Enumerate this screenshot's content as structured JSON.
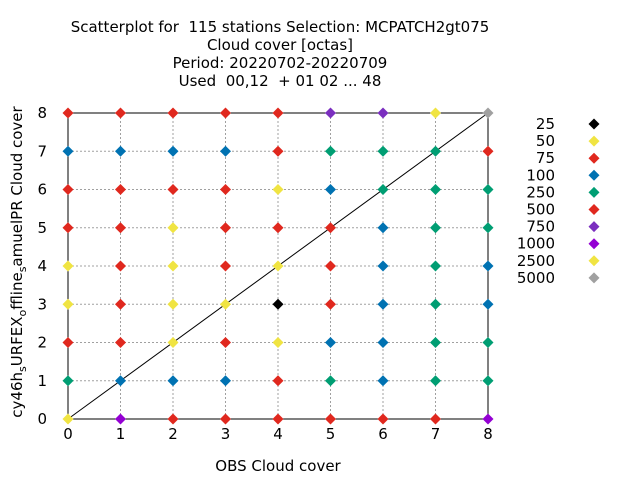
{
  "chart_data": {
    "type": "scatter",
    "title_lines": [
      "Scatterplot for  115 stations Selection: MCPATCH2gt075",
      "Cloud cover [octas]",
      "Period: 20220702-20220709",
      "Used  00,12  + 01 02 ... 48"
    ],
    "xlabel": "OBS Cloud cover",
    "ylabel": "cy46h_sURFEX_offline_samuelPR Cloud cover",
    "xlim": [
      0,
      8
    ],
    "ylim": [
      0,
      8
    ],
    "xticks": [
      "0",
      "1",
      "2",
      "3",
      "4",
      "5",
      "6",
      "7",
      "8"
    ],
    "yticks": [
      "0",
      "1",
      "2",
      "3",
      "4",
      "5",
      "6",
      "7",
      "8"
    ],
    "grid": true,
    "diagonal": true,
    "legend_position": "right",
    "legend": [
      {
        "label": "25",
        "color": "#000000"
      },
      {
        "label": "50",
        "color": "#f0e442"
      },
      {
        "label": "75",
        "color": "#e0281e"
      },
      {
        "label": "100",
        "color": "#0072b2"
      },
      {
        "label": "250",
        "color": "#009e73"
      },
      {
        "label": "500",
        "color": "#e0281e"
      },
      {
        "label": "750",
        "color": "#7b2fbf"
      },
      {
        "label": "1000",
        "color": "#9400d3"
      },
      {
        "label": "2500",
        "color": "#f0e442"
      },
      {
        "label": "5000",
        "color": "#a0a0a0"
      }
    ],
    "points": [
      {
        "x": 0,
        "y": 0,
        "c": "#f0e442"
      },
      {
        "x": 1,
        "y": 0,
        "c": "#9400d3"
      },
      {
        "x": 2,
        "y": 0,
        "c": "#e0281e"
      },
      {
        "x": 3,
        "y": 0,
        "c": "#e0281e"
      },
      {
        "x": 4,
        "y": 0,
        "c": "#e0281e"
      },
      {
        "x": 5,
        "y": 0,
        "c": "#e0281e"
      },
      {
        "x": 6,
        "y": 0,
        "c": "#e0281e"
      },
      {
        "x": 7,
        "y": 0,
        "c": "#e0281e"
      },
      {
        "x": 8,
        "y": 0,
        "c": "#9400d3"
      },
      {
        "x": 0,
        "y": 1,
        "c": "#009e73"
      },
      {
        "x": 1,
        "y": 1,
        "c": "#0072b2"
      },
      {
        "x": 2,
        "y": 1,
        "c": "#0072b2"
      },
      {
        "x": 3,
        "y": 1,
        "c": "#0072b2"
      },
      {
        "x": 4,
        "y": 1,
        "c": "#e0281e"
      },
      {
        "x": 5,
        "y": 1,
        "c": "#009e73"
      },
      {
        "x": 6,
        "y": 1,
        "c": "#0072b2"
      },
      {
        "x": 7,
        "y": 1,
        "c": "#009e73"
      },
      {
        "x": 8,
        "y": 1,
        "c": "#009e73"
      },
      {
        "x": 0,
        "y": 2,
        "c": "#e0281e"
      },
      {
        "x": 1,
        "y": 2,
        "c": "#e0281e"
      },
      {
        "x": 2,
        "y": 2,
        "c": "#f0e442"
      },
      {
        "x": 3,
        "y": 2,
        "c": "#e0281e"
      },
      {
        "x": 4,
        "y": 2,
        "c": "#f0e442"
      },
      {
        "x": 5,
        "y": 2,
        "c": "#0072b2"
      },
      {
        "x": 6,
        "y": 2,
        "c": "#0072b2"
      },
      {
        "x": 7,
        "y": 2,
        "c": "#009e73"
      },
      {
        "x": 8,
        "y": 2,
        "c": "#009e73"
      },
      {
        "x": 0,
        "y": 3,
        "c": "#f0e442"
      },
      {
        "x": 1,
        "y": 3,
        "c": "#e0281e"
      },
      {
        "x": 2,
        "y": 3,
        "c": "#f0e442"
      },
      {
        "x": 3,
        "y": 3,
        "c": "#f0e442"
      },
      {
        "x": 4,
        "y": 3,
        "c": "#000000"
      },
      {
        "x": 5,
        "y": 3,
        "c": "#e0281e"
      },
      {
        "x": 6,
        "y": 3,
        "c": "#0072b2"
      },
      {
        "x": 7,
        "y": 3,
        "c": "#009e73"
      },
      {
        "x": 8,
        "y": 3,
        "c": "#0072b2"
      },
      {
        "x": 0,
        "y": 4,
        "c": "#f0e442"
      },
      {
        "x": 1,
        "y": 4,
        "c": "#e0281e"
      },
      {
        "x": 2,
        "y": 4,
        "c": "#f0e442"
      },
      {
        "x": 3,
        "y": 4,
        "c": "#e0281e"
      },
      {
        "x": 4,
        "y": 4,
        "c": "#f0e442"
      },
      {
        "x": 5,
        "y": 4,
        "c": "#e0281e"
      },
      {
        "x": 6,
        "y": 4,
        "c": "#0072b2"
      },
      {
        "x": 7,
        "y": 4,
        "c": "#009e73"
      },
      {
        "x": 8,
        "y": 4,
        "c": "#0072b2"
      },
      {
        "x": 0,
        "y": 5,
        "c": "#e0281e"
      },
      {
        "x": 1,
        "y": 5,
        "c": "#e0281e"
      },
      {
        "x": 2,
        "y": 5,
        "c": "#f0e442"
      },
      {
        "x": 3,
        "y": 5,
        "c": "#e0281e"
      },
      {
        "x": 4,
        "y": 5,
        "c": "#e0281e"
      },
      {
        "x": 5,
        "y": 5,
        "c": "#e0281e"
      },
      {
        "x": 6,
        "y": 5,
        "c": "#0072b2"
      },
      {
        "x": 7,
        "y": 5,
        "c": "#009e73"
      },
      {
        "x": 8,
        "y": 5,
        "c": "#009e73"
      },
      {
        "x": 0,
        "y": 6,
        "c": "#e0281e"
      },
      {
        "x": 1,
        "y": 6,
        "c": "#e0281e"
      },
      {
        "x": 2,
        "y": 6,
        "c": "#e0281e"
      },
      {
        "x": 3,
        "y": 6,
        "c": "#e0281e"
      },
      {
        "x": 4,
        "y": 6,
        "c": "#f0e442"
      },
      {
        "x": 5,
        "y": 6,
        "c": "#0072b2"
      },
      {
        "x": 6,
        "y": 6,
        "c": "#009e73"
      },
      {
        "x": 7,
        "y": 6,
        "c": "#009e73"
      },
      {
        "x": 8,
        "y": 6,
        "c": "#009e73"
      },
      {
        "x": 0,
        "y": 7,
        "c": "#0072b2"
      },
      {
        "x": 1,
        "y": 7,
        "c": "#0072b2"
      },
      {
        "x": 2,
        "y": 7,
        "c": "#0072b2"
      },
      {
        "x": 3,
        "y": 7,
        "c": "#0072b2"
      },
      {
        "x": 4,
        "y": 7,
        "c": "#e0281e"
      },
      {
        "x": 5,
        "y": 7,
        "c": "#009e73"
      },
      {
        "x": 6,
        "y": 7,
        "c": "#009e73"
      },
      {
        "x": 7,
        "y": 7,
        "c": "#009e73"
      },
      {
        "x": 8,
        "y": 7,
        "c": "#e0281e"
      },
      {
        "x": 0,
        "y": 8,
        "c": "#e0281e"
      },
      {
        "x": 1,
        "y": 8,
        "c": "#e0281e"
      },
      {
        "x": 2,
        "y": 8,
        "c": "#e0281e"
      },
      {
        "x": 3,
        "y": 8,
        "c": "#e0281e"
      },
      {
        "x": 4,
        "y": 8,
        "c": "#e0281e"
      },
      {
        "x": 5,
        "y": 8,
        "c": "#7b2fbf"
      },
      {
        "x": 6,
        "y": 8,
        "c": "#7b2fbf"
      },
      {
        "x": 7,
        "y": 8,
        "c": "#f0e442"
      },
      {
        "x": 8,
        "y": 8,
        "c": "#a0a0a0"
      }
    ]
  }
}
